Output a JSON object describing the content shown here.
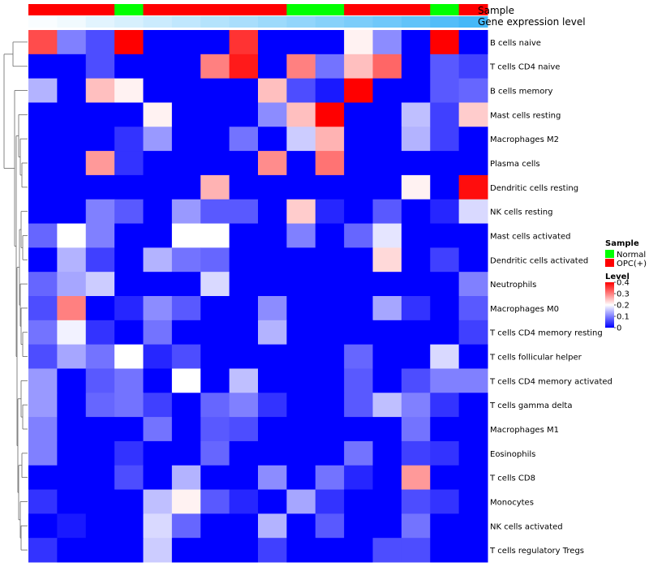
{
  "chart_data": {
    "type": "heatmap",
    "annotation_labels": {
      "sample": "Sample",
      "gene_expression": "Gene expression level"
    },
    "sample_groups": [
      "OPC(+)",
      "OPC(+)",
      "OPC(+)",
      "Normal",
      "OPC(+)",
      "OPC(+)",
      "OPC(+)",
      "OPC(+)",
      "OPC(+)",
      "Normal",
      "Normal",
      "OPC(+)",
      "OPC(+)",
      "OPC(+)",
      "Normal",
      "OPC(+)"
    ],
    "gene_expression_levels": [
      0.02,
      0.05,
      0.1,
      0.14,
      0.18,
      0.22,
      0.26,
      0.3,
      0.34,
      0.38,
      0.42,
      0.46,
      0.5,
      0.55,
      0.6,
      0.65
    ],
    "rows": [
      "B cells naive",
      "T cells CD4 naive",
      "B cells memory",
      "Mast cells resting",
      "Macrophages M2",
      "Plasma cells",
      "Dendritic cells resting",
      "NK cells resting",
      "Mast cells activated",
      "Dendritic cells activated",
      "Neutrophils",
      "Macrophages M0",
      "T cells CD4 memory resting",
      "T cells follicular helper",
      "T cells CD4 memory activated",
      "T cells gamma delta",
      "Macrophages M1",
      "Eosinophils",
      "T cells CD8",
      "Monocytes",
      "NK cells activated",
      "T cells regulatory  Tregs"
    ],
    "values": [
      [
        0.34,
        0.1,
        0.06,
        0.4,
        0,
        0,
        0,
        0.36,
        0,
        0,
        0,
        0.21,
        0.11,
        0,
        0.4,
        0
      ],
      [
        0,
        0,
        0.06,
        0,
        0,
        0,
        0.3,
        0.38,
        0,
        0.3,
        0.09,
        0.25,
        0.32,
        0,
        0.07,
        0.05
      ],
      [
        0.14,
        0,
        0.25,
        0.21,
        0,
        0,
        0,
        0,
        0.25,
        0.06,
        0.02,
        0.4,
        0,
        0,
        0.07,
        0.08
      ],
      [
        0,
        0,
        0,
        0,
        0.21,
        0,
        0,
        0,
        0.11,
        0.25,
        0.4,
        0,
        0,
        0.15,
        0.05,
        0.24
      ],
      [
        0,
        0,
        0,
        0.04,
        0.12,
        0,
        0,
        0.09,
        0,
        0.16,
        0.26,
        0,
        0,
        0.14,
        0.05,
        0
      ],
      [
        0,
        0,
        0.28,
        0.04,
        0,
        0,
        0,
        0,
        0.29,
        0,
        0.31,
        0,
        0,
        0,
        0,
        0
      ],
      [
        0,
        0,
        0,
        0,
        0,
        0,
        0.26,
        0,
        0,
        0,
        0,
        0,
        0,
        0.21,
        0,
        0.39
      ],
      [
        0,
        0,
        0.1,
        0.07,
        0,
        0.12,
        0.07,
        0.07,
        0,
        0.24,
        0.03,
        0,
        0.07,
        0,
        0.03,
        0.17
      ],
      [
        0.08,
        0.2,
        0.1,
        0,
        0,
        0.2,
        0.2,
        0,
        0,
        0.1,
        0,
        0.08,
        0.18,
        0,
        0,
        0
      ],
      [
        0,
        0.14,
        0.05,
        0,
        0.14,
        0.09,
        0.08,
        0,
        0,
        0,
        0,
        0,
        0.23,
        0,
        0.05,
        0
      ],
      [
        0.08,
        0.13,
        0.16,
        0,
        0,
        0,
        0.17,
        0,
        0,
        0,
        0,
        0,
        0,
        0,
        0,
        0.1
      ],
      [
        0.06,
        0.3,
        0,
        0.03,
        0.11,
        0.07,
        0,
        0,
        0.11,
        0,
        0,
        0,
        0.13,
        0.04,
        0,
        0.07
      ],
      [
        0.09,
        0.19,
        0.04,
        0,
        0.09,
        0,
        0,
        0,
        0.14,
        0,
        0,
        0,
        0,
        0,
        0,
        0.05
      ],
      [
        0.06,
        0.13,
        0.09,
        0.2,
        0.03,
        0.06,
        0,
        0,
        0,
        0,
        0,
        0.08,
        0,
        0,
        0.17,
        0
      ],
      [
        0.12,
        0,
        0.07,
        0.09,
        0,
        0.2,
        0,
        0.15,
        0,
        0,
        0,
        0.07,
        0,
        0.06,
        0.1,
        0.1
      ],
      [
        0.12,
        0,
        0.08,
        0.09,
        0.05,
        0,
        0.08,
        0.1,
        0.04,
        0,
        0,
        0.07,
        0.15,
        0.1,
        0.04,
        0
      ],
      [
        0.1,
        0,
        0,
        0,
        0.09,
        0,
        0.07,
        0.06,
        0,
        0,
        0,
        0,
        0,
        0.09,
        0,
        0
      ],
      [
        0.1,
        0,
        0,
        0.04,
        0,
        0,
        0.08,
        0,
        0,
        0,
        0,
        0.09,
        0,
        0.05,
        0.04,
        0
      ],
      [
        0,
        0,
        0,
        0.06,
        0,
        0.14,
        0,
        0,
        0.11,
        0,
        0.09,
        0.03,
        0,
        0.28,
        0,
        0
      ],
      [
        0.04,
        0,
        0,
        0,
        0.15,
        0.21,
        0.07,
        0.03,
        0,
        0.13,
        0.04,
        0,
        0,
        0.06,
        0.04,
        0
      ],
      [
        0,
        0.02,
        0,
        0,
        0.17,
        0.08,
        0,
        0,
        0.14,
        0,
        0.07,
        0,
        0,
        0.09,
        0,
        0
      ],
      [
        0.04,
        0,
        0,
        0,
        0.16,
        0,
        0,
        0,
        0.05,
        0,
        0,
        0,
        0.06,
        0.06,
        0,
        0
      ]
    ],
    "legend": {
      "sample_title": "Sample",
      "sample_items": [
        {
          "label": "Normal",
          "color": "#00ff00"
        },
        {
          "label": "OPC(+)",
          "color": "#ff0000"
        }
      ],
      "level_title": "Level",
      "level_ticks": [
        "0.4",
        "0.3",
        "0.2",
        "0.1",
        "0"
      ],
      "level_tick_values": [
        0.4,
        0.3,
        0.2,
        0.1,
        0
      ]
    },
    "colors": {
      "low": "#0000ff",
      "mid": "#ffffff",
      "high": "#ff0000",
      "normal": "#00ff00",
      "opc": "#ff0000",
      "gene_low": "#ffffff",
      "gene_high": "#44b8f8"
    },
    "scale": {
      "min": 0,
      "mid": 0.2,
      "max": 0.4
    },
    "dendrogram": "row"
  }
}
